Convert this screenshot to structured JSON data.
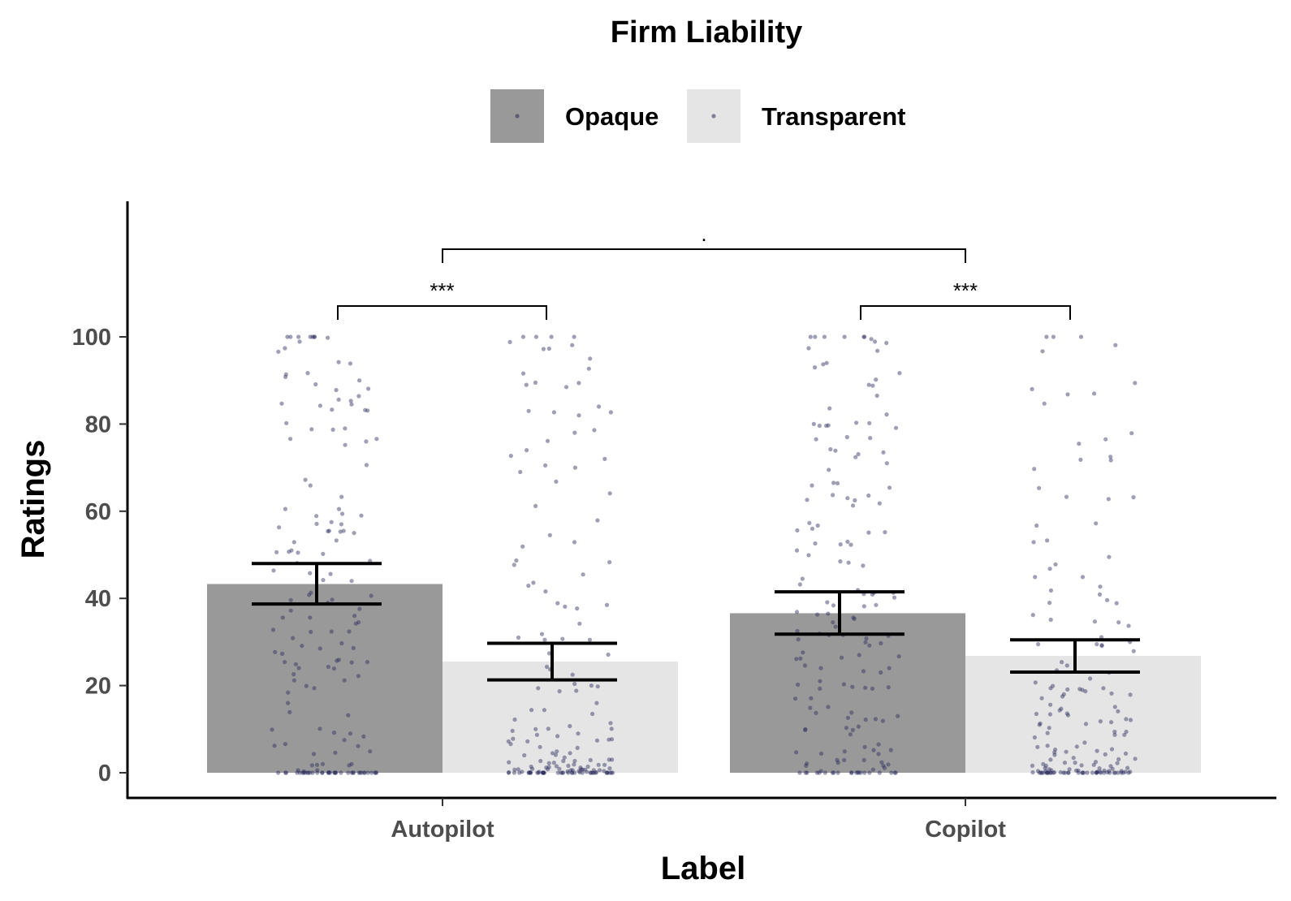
{
  "chart_data": {
    "type": "bar",
    "title": "Firm Liability",
    "xlabel": "Label",
    "ylabel": "Ratings",
    "categories": [
      "Autopilot",
      "Copilot"
    ],
    "ylim": [
      0,
      105
    ],
    "yticks": [
      0,
      20,
      40,
      60,
      80,
      100
    ],
    "grid": false,
    "legend_position": "top",
    "series": [
      {
        "name": "Opaque",
        "values": [
          43.3,
          36.6
        ],
        "error_low": [
          38.7,
          31.8
        ],
        "error_high": [
          48.0,
          41.5
        ],
        "color": "#999999"
      },
      {
        "name": "Transparent",
        "values": [
          25.5,
          26.8
        ],
        "error_low": [
          21.3,
          23.1
        ],
        "error_high": [
          29.7,
          30.5
        ],
        "color": "#e5e5e5"
      }
    ],
    "points_color": "#2b2b5e",
    "significance": [
      {
        "between": "Autopilot Opaque vs Autopilot Transparent",
        "label": "***"
      },
      {
        "between": "Copilot Opaque vs Copilot Transparent",
        "label": "***"
      },
      {
        "between": "Autopilot vs Copilot",
        "label": "."
      }
    ]
  }
}
